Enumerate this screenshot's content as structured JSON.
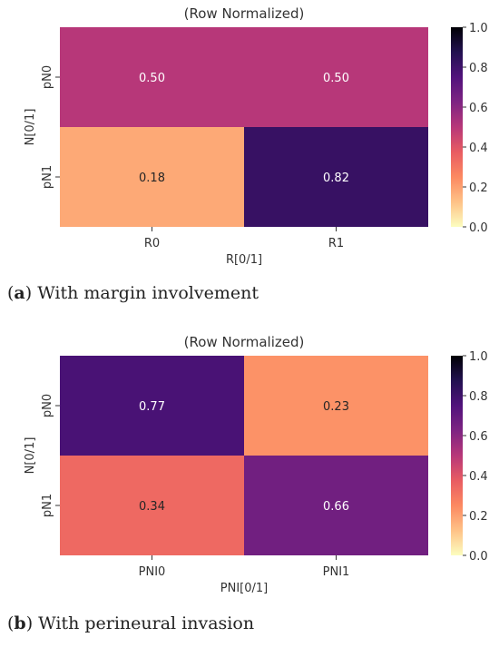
{
  "colorbar": {
    "ticks": [
      "1.0",
      "0.8",
      "0.6",
      "0.4",
      "0.2",
      "0.0"
    ],
    "stops": [
      "#fcfdbf",
      "#fec287",
      "#fc8961",
      "#e85c62",
      "#b73779",
      "#7e2482",
      "#51127c",
      "#221150",
      "#000004"
    ]
  },
  "chart_data": [
    {
      "type": "heatmap",
      "title": "(Row Normalized)",
      "xlabel": "R[0/1]",
      "ylabel": "N[0/1]",
      "x_categories": [
        "R0",
        "R1"
      ],
      "y_categories": [
        "pN0",
        "pN1"
      ],
      "values": [
        [
          0.5,
          0.5
        ],
        [
          0.18,
          0.82
        ]
      ],
      "value_labels": [
        [
          "0.50",
          "0.50"
        ],
        [
          "0.18",
          "0.82"
        ]
      ],
      "colorscale": "magma_r",
      "vmin": 0.0,
      "vmax": 1.0,
      "caption_letter": "a",
      "caption_text": " With margin involvement"
    },
    {
      "type": "heatmap",
      "title": "(Row Normalized)",
      "xlabel": "PNI[0/1]",
      "ylabel": "N[0/1]",
      "x_categories": [
        "PNI0",
        "PNI1"
      ],
      "y_categories": [
        "pN0",
        "pN1"
      ],
      "values": [
        [
          0.77,
          0.23
        ],
        [
          0.34,
          0.66
        ]
      ],
      "value_labels": [
        [
          "0.77",
          "0.23"
        ],
        [
          "0.34",
          "0.66"
        ]
      ],
      "colorscale": "magma_r",
      "vmin": 0.0,
      "vmax": 1.0,
      "caption_letter": "b",
      "caption_text": " With perineural invasion"
    }
  ]
}
